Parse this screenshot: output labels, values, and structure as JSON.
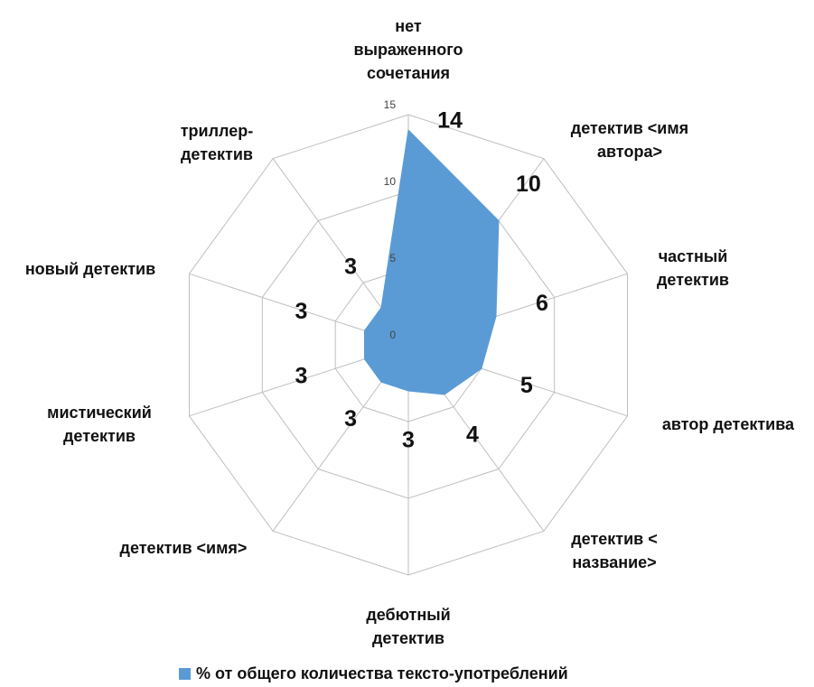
{
  "chart_data": {
    "type": "radar",
    "categories": [
      "нет выраженного сочетания",
      "детектив <имя автора>",
      "частный детектив",
      "автор детектива",
      "детектив < название>",
      "дебютный детектив",
      "детектив <имя>",
      "мистический детектив",
      "новый детектив",
      "триллер-детектив"
    ],
    "series": [
      {
        "name": "% от общего количества тексто-употреблений",
        "color": "#5b9bd5",
        "values": [
          14,
          10,
          6,
          5,
          4,
          3,
          3,
          3,
          3,
          3
        ]
      }
    ],
    "ylim": [
      0,
      15
    ],
    "yticks": [
      0,
      5,
      10,
      15
    ],
    "grid": true,
    "legend": "bottom"
  }
}
